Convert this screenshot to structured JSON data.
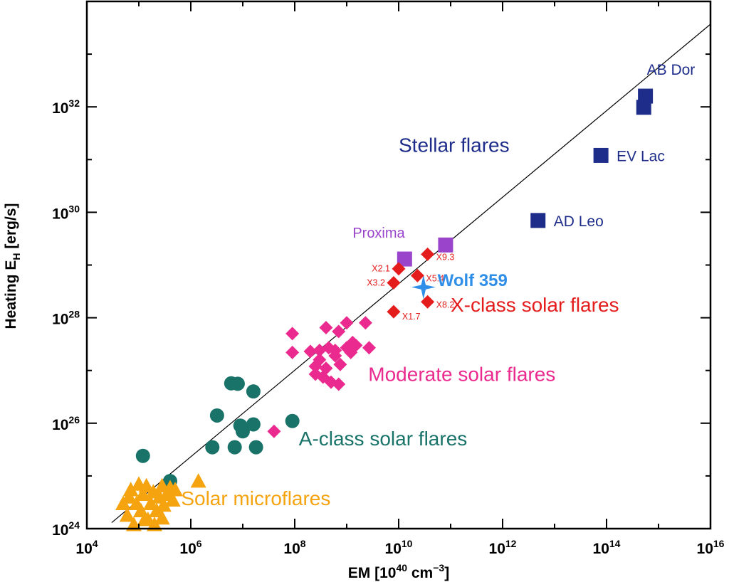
{
  "chart_data": {
    "type": "scatter",
    "xlabel": "EM [10^40 cm^-3]",
    "ylabel": "Heating E_H [erg/s]",
    "x_scale": "log",
    "y_scale": "log",
    "xlim": [
      10000,
      1e+16
    ],
    "ylim": [
      1e+24,
      1e+34
    ],
    "x_ticks": [
      {
        "value": 10000.0,
        "base": "10",
        "exp": "4"
      },
      {
        "value": 1000000.0,
        "base": "10",
        "exp": "6"
      },
      {
        "value": 100000000.0,
        "base": "10",
        "exp": "8"
      },
      {
        "value": 10000000000.0,
        "base": "10",
        "exp": "10"
      },
      {
        "value": 1000000000000.0,
        "base": "10",
        "exp": "12"
      },
      {
        "value": 100000000000000.0,
        "base": "10",
        "exp": "14"
      },
      {
        "value": 1e+16,
        "base": "10",
        "exp": "16"
      }
    ],
    "y_ticks": [
      {
        "value": 1e+24,
        "base": "10",
        "exp": "24"
      },
      {
        "value": 1e+26,
        "base": "10",
        "exp": "26"
      },
      {
        "value": 1e+28,
        "base": "10",
        "exp": "28"
      },
      {
        "value": 1e+30,
        "base": "10",
        "exp": "30"
      },
      {
        "value": 1e+32,
        "base": "10",
        "exp": "32"
      }
    ],
    "fit_line": {
      "x": [
        30000,
        1e+16
      ],
      "y": [
        1.3e+24,
        3.7e+33
      ],
      "color": "#000000"
    },
    "series": [
      {
        "name": "Stellar flares",
        "marker": "square",
        "color": "#1f2d8a",
        "points": [
          {
            "x": 560000000000000.0,
            "y": 1.6e+32,
            "label": "AB Dor"
          },
          {
            "x": 520000000000000.0,
            "y": 9.8e+31
          },
          {
            "x": 78000000000000.0,
            "y": 1.2e+31,
            "label": "EV Lac"
          },
          {
            "x": 4800000000000.0,
            "y": 7e+29,
            "label": "AD Leo"
          }
        ]
      },
      {
        "name": "Proxima",
        "marker": "square",
        "color": "#9a44cc",
        "points": [
          {
            "x": 13000000000.0,
            "y": 1.3e+29
          },
          {
            "x": 80000000000.0,
            "y": 2.4e+29
          }
        ]
      },
      {
        "name": "Wolf 359",
        "marker": "star",
        "color": "#2f8fe8",
        "points": [
          {
            "x": 30000000000.0,
            "y": 3.8e+28
          }
        ]
      },
      {
        "name": "X-class solar flares",
        "marker": "diamond",
        "color": "#e51c1c",
        "points": [
          {
            "x": 10000000000.0,
            "y": 8.5e+28,
            "label": "X2.1"
          },
          {
            "x": 8000000000.0,
            "y": 4.6e+28,
            "label": "X3.2"
          },
          {
            "x": 36000000000.0,
            "y": 1.6e+29,
            "label": "X9.3"
          },
          {
            "x": 23000000000.0,
            "y": 6.3e+28,
            "label": "X5.4"
          },
          {
            "x": 36000000000.0,
            "y": 2e+28,
            "label": "X8.2"
          },
          {
            "x": 8000000000.0,
            "y": 1.3e+28,
            "label": "X1.7"
          }
        ]
      },
      {
        "name": "Moderate solar flares",
        "marker": "diamond",
        "color": "#ea2a8e",
        "points": [
          {
            "x": 90000000.0,
            "y": 5e+27
          },
          {
            "x": 90000000.0,
            "y": 2.2e+27
          },
          {
            "x": 200000000.0,
            "y": 2.3e+27
          },
          {
            "x": 300000000.0,
            "y": 2.4e+27
          },
          {
            "x": 450000000.0,
            "y": 2.7e+27
          },
          {
            "x": 600000000.0,
            "y": 2.4e+27
          },
          {
            "x": 400000000.0,
            "y": 6.5e+27
          },
          {
            "x": 700000000.0,
            "y": 5.5e+27
          },
          {
            "x": 1000000000.0,
            "y": 8e+27
          },
          {
            "x": 1300000000.0,
            "y": 3.4e+27
          },
          {
            "x": 2300000000.0,
            "y": 8e+27
          },
          {
            "x": 2700000000.0,
            "y": 2.7e+27
          },
          {
            "x": 1000000000.0,
            "y": 2.7e+27
          },
          {
            "x": 600000000.0,
            "y": 1.9e+27
          },
          {
            "x": 300000000.0,
            "y": 1.6e+27
          },
          {
            "x": 400000000.0,
            "y": 1.1e+27
          },
          {
            "x": 250000000.0,
            "y": 1.2e+27
          },
          {
            "x": 350000000.0,
            "y": 7.5e+26
          },
          {
            "x": 500000000.0,
            "y": 6e+26
          },
          {
            "x": 700000000.0,
            "y": 5.5e+26
          },
          {
            "x": 750000000.0,
            "y": 1.3e+27
          },
          {
            "x": 1200000000.0,
            "y": 2.2e+27
          },
          {
            "x": 1500000000.0,
            "y": 3e+27
          },
          {
            "x": 250000000.0,
            "y": 8.5e+26
          },
          {
            "x": 40000000.0,
            "y": 7e+25
          }
        ]
      },
      {
        "name": "A-class solar flares",
        "marker": "circle",
        "color": "#197369",
        "points": [
          {
            "x": 6000000.0,
            "y": 5.7e+26
          },
          {
            "x": 8000000.0,
            "y": 5.6e+26
          },
          {
            "x": 16000000.0,
            "y": 4e+26
          },
          {
            "x": 3200000.0,
            "y": 1.4e+26
          },
          {
            "x": 2600000.0,
            "y": 3.5e+25
          },
          {
            "x": 7000000.0,
            "y": 3.5e+25
          },
          {
            "x": 10000000.0,
            "y": 7e+25
          },
          {
            "x": 9000000.0,
            "y": 9e+25
          },
          {
            "x": 16000000.0,
            "y": 9.5e+25
          },
          {
            "x": 18000000.0,
            "y": 3.5e+25
          },
          {
            "x": 90000000.0,
            "y": 1.1e+26
          },
          {
            "x": 120000.0,
            "y": 2.4e+25
          },
          {
            "x": 400000.0,
            "y": 8e+24
          }
        ]
      },
      {
        "name": "Solar microflares",
        "marker": "triangle",
        "color": "#f5a30f",
        "points": [
          {
            "x": 50000.0,
            "y": 3e+24
          },
          {
            "x": 60000.0,
            "y": 1.8e+24
          },
          {
            "x": 70000.0,
            "y": 5.5e+24
          },
          {
            "x": 80000.0,
            "y": 1.2e+24
          },
          {
            "x": 90000.0,
            "y": 3e+24
          },
          {
            "x": 100000.0,
            "y": 7e+24
          },
          {
            "x": 110000.0,
            "y": 2.2e+24
          },
          {
            "x": 120000.0,
            "y": 4.5e+24
          },
          {
            "x": 140000.0,
            "y": 6.5e+24
          },
          {
            "x": 150000.0,
            "y": 1.5e+24
          },
          {
            "x": 170000.0,
            "y": 3e+24
          },
          {
            "x": 190000.0,
            "y": 5e+24
          },
          {
            "x": 200000.0,
            "y": 1.2e+24
          },
          {
            "x": 220000.0,
            "y": 2.2e+24
          },
          {
            "x": 250000.0,
            "y": 4e+24
          },
          {
            "x": 280000.0,
            "y": 6.5e+24
          },
          {
            "x": 300000.0,
            "y": 2.8e+24
          },
          {
            "x": 350000.0,
            "y": 4.5e+24
          },
          {
            "x": 400000.0,
            "y": 6e+24
          },
          {
            "x": 450000.0,
            "y": 3.5e+24
          },
          {
            "x": 500000.0,
            "y": 5.5e+24
          },
          {
            "x": 65000.0,
            "y": 4e+24
          },
          {
            "x": 130000.0,
            "y": 1.5e+24
          },
          {
            "x": 280000.0,
            "y": 1.6e+24
          },
          {
            "x": 1400000.0,
            "y": 8e+24
          }
        ]
      }
    ],
    "group_labels": [
      {
        "text": "Stellar flares",
        "color": "#1f2d8a",
        "x": 10000000000.0,
        "y": 1.4e+31
      },
      {
        "text": "X-class solar flares",
        "color": "#e51c1c",
        "x": 100000000000.0,
        "y": 1.3e+28
      },
      {
        "text": "Moderate solar flares",
        "color": "#ea2a8e",
        "x": 2600000000.0,
        "y": 6.3e+26
      },
      {
        "text": "A-class solar flares",
        "color": "#197369",
        "x": 120000000.0,
        "y": 3.8e+25
      },
      {
        "text": "Solar microflares",
        "color": "#f5a30f",
        "x": 650000.0,
        "y": 2.8e+24
      },
      {
        "text": "Proxima",
        "color": "#9a44cc",
        "x": 1300000000.0,
        "y": 3.3e+29
      },
      {
        "text": "Wolf 359",
        "color": "#2f8fe8",
        "x": 56000000000.0,
        "y": 4e+28
      }
    ]
  }
}
